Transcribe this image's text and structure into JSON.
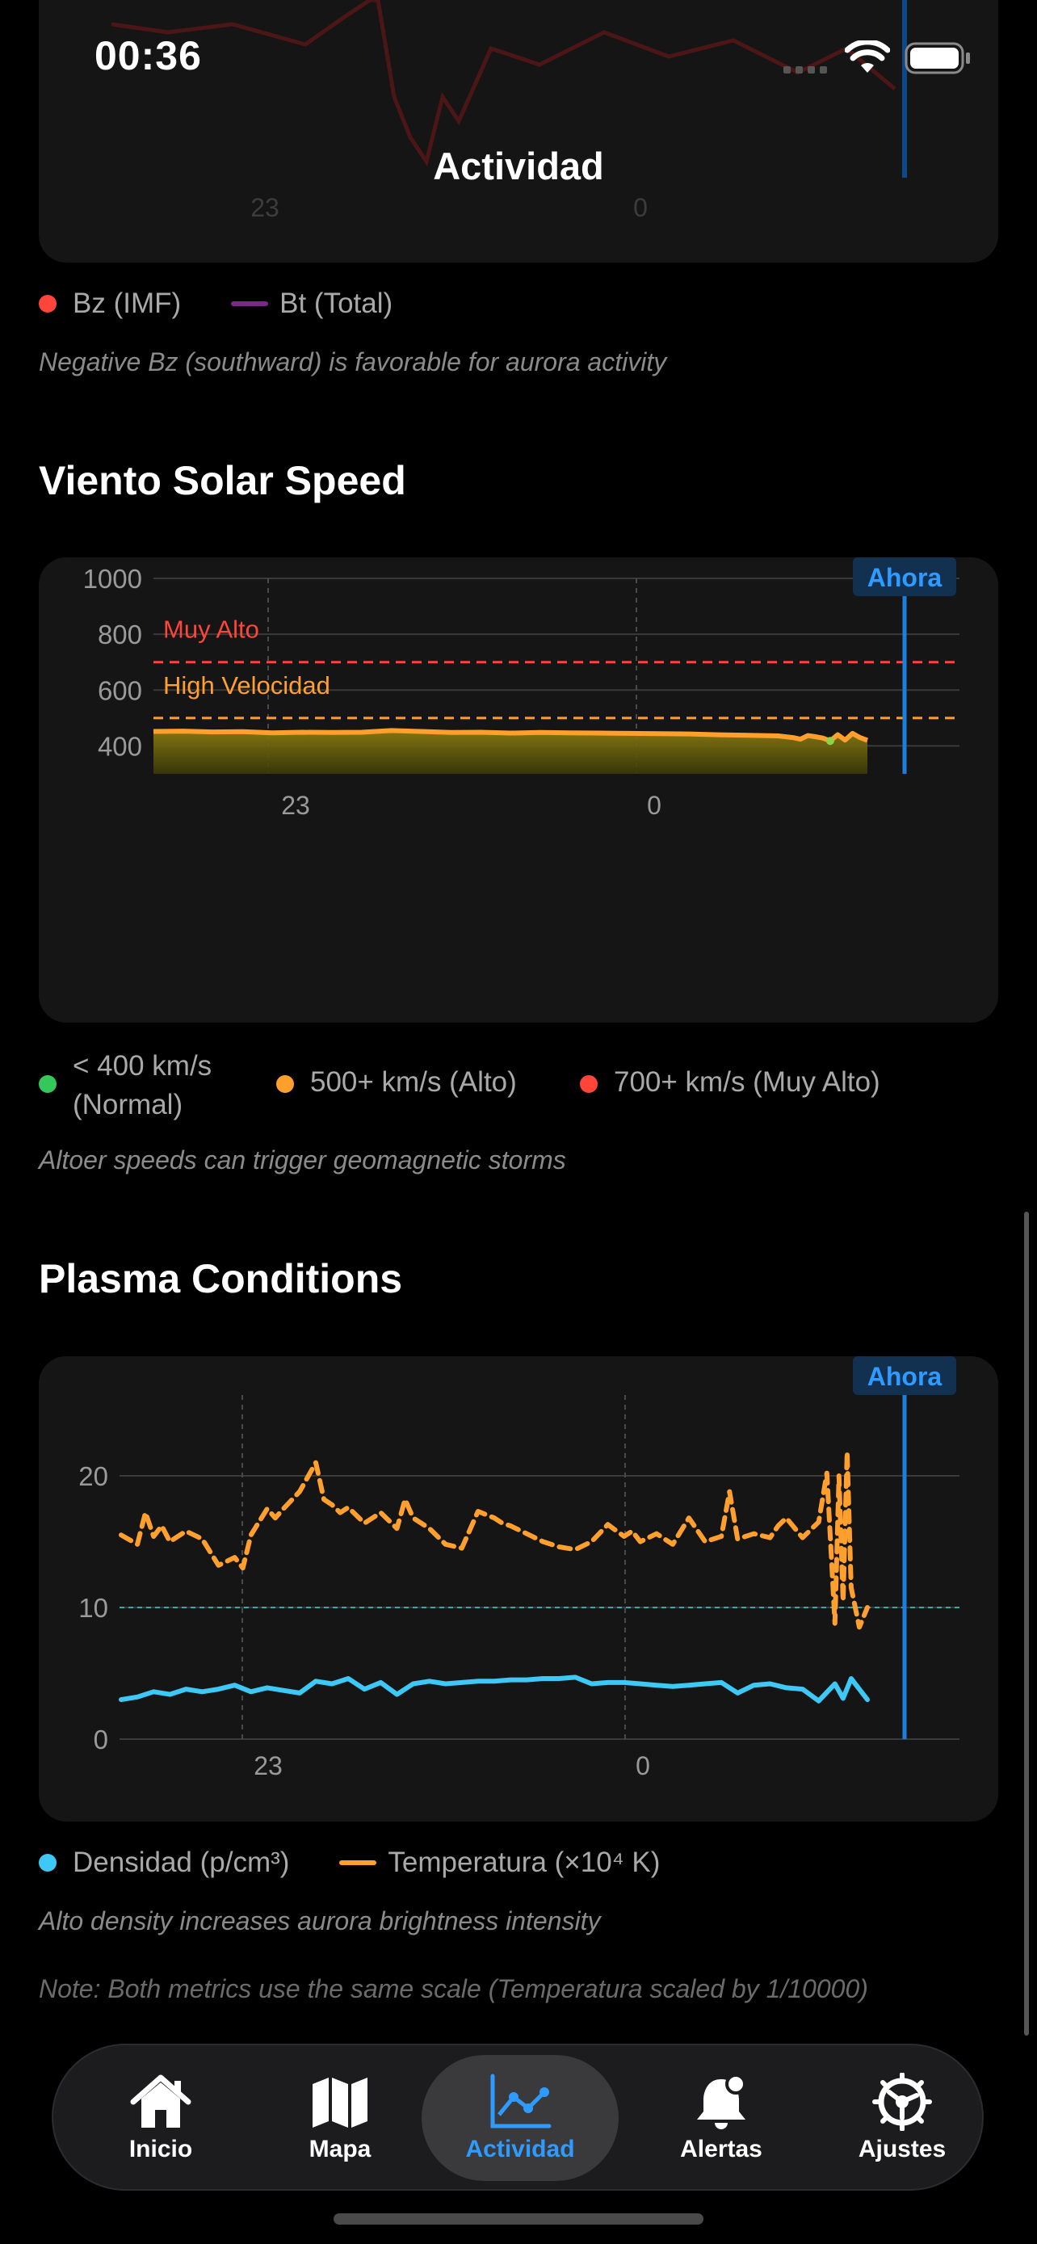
{
  "status": {
    "time": "00:36"
  },
  "nav": {
    "title": "Actividad"
  },
  "top_chart": {
    "x_tick_labels": [
      "23",
      "0"
    ]
  },
  "magnetic_legend": [
    {
      "label": "Bz (IMF)",
      "color": "#ff453a",
      "kind": "dot"
    },
    {
      "label": "Bt (Total)",
      "color": "#7a2a86",
      "kind": "line"
    }
  ],
  "magnetic_caption": "Negative Bz (southward) is favorable for aurora activity",
  "solar_wind": {
    "title": "Viento Solar Speed",
    "now_label": "Ahora",
    "caption": "Altoer speeds can trigger geomagnetic storms",
    "legend": [
      {
        "label_line1": "< 400 km/s",
        "label_line2": "(Normal)",
        "color": "#34c759"
      },
      {
        "label": "500+ km/s (Alto)",
        "color": "#ff9f2e"
      },
      {
        "label": "700+ km/s (Muy Alto)",
        "color": "#ff453a"
      }
    ]
  },
  "plasma": {
    "title": "Plasma Conditions",
    "now_label": "Ahora",
    "caption": "Alto density increases aurora brightness intensity",
    "note": "Note: Both metrics use the same scale (Temperatura scaled by 1/10000)",
    "legend": [
      {
        "label": "Densidad (p/cm³)",
        "color": "#3dc8f5",
        "kind": "dot"
      },
      {
        "label": "Temperatura (×10⁴ K)",
        "color": "#ff9f2e",
        "kind": "line"
      }
    ]
  },
  "chart_data": [
    {
      "type": "line",
      "title": "Viento Solar Speed",
      "xlabel": "",
      "ylabel": "",
      "x_ticks": [
        "23",
        "0"
      ],
      "y_ticks": [
        400,
        600,
        800,
        1000
      ],
      "ylim": [
        300,
        1000
      ],
      "xlim": [
        0,
        100
      ],
      "grid": true,
      "thresholds": [
        {
          "label": "Muy Alto",
          "value": 700,
          "color": "#ff453a"
        },
        {
          "label": "High Velocidad",
          "value": 500,
          "color": "#ff9f2e"
        }
      ],
      "series": [
        {
          "color": "#ff9f2e",
          "x": [
            0,
            4,
            8,
            12,
            16,
            20,
            24,
            28,
            32,
            36,
            40,
            44,
            48,
            52,
            56,
            60,
            64,
            68,
            72,
            76,
            80,
            84,
            86,
            87,
            88,
            89,
            90,
            91,
            92,
            93,
            94,
            95,
            96
          ],
          "values": [
            452,
            453,
            450,
            451,
            447,
            449,
            448,
            449,
            455,
            452,
            448,
            449,
            446,
            448,
            447,
            446,
            445,
            444,
            443,
            440,
            438,
            436,
            430,
            424,
            437,
            433,
            428,
            418,
            440,
            421,
            445,
            430,
            420
          ]
        }
      ]
    },
    {
      "type": "line",
      "title": "Plasma Conditions",
      "xlabel": "",
      "ylabel": "",
      "x_ticks": [
        "23",
        "0"
      ],
      "y_ticks": [
        0,
        10,
        20
      ],
      "ylim": [
        0,
        26
      ],
      "xlim": [
        0,
        100
      ],
      "grid": true,
      "reference_line": 10,
      "series": [
        {
          "name": "Temperatura (×10⁴ K)",
          "color": "#ff9f2e",
          "dashed": true,
          "x": [
            0,
            2,
            3,
            4,
            5,
            6,
            8,
            10,
            12,
            14,
            15,
            16,
            17,
            18,
            19,
            20,
            22,
            24,
            25,
            26,
            27,
            28,
            30,
            32,
            34,
            35,
            36,
            38,
            40,
            42,
            44,
            46,
            47,
            48,
            50,
            52,
            54,
            56,
            58,
            60,
            62,
            63,
            64,
            66,
            68,
            70,
            72,
            74,
            75,
            76,
            78,
            80,
            81,
            82,
            84,
            86,
            87,
            88,
            88.5,
            89,
            89.5,
            90,
            91,
            92
          ],
          "values": [
            15.5,
            14.8,
            17.2,
            15.4,
            16.2,
            15,
            15.8,
            15.2,
            13.2,
            13.8,
            13,
            15.5,
            16.5,
            17.5,
            16.8,
            17.5,
            18.8,
            21,
            18.2,
            17.8,
            17.2,
            17.6,
            16.4,
            17.2,
            16,
            18.2,
            16.8,
            16,
            14.8,
            14.5,
            17.3,
            16.8,
            16.4,
            16.2,
            15.6,
            15,
            14.6,
            14.4,
            15,
            16.3,
            15.4,
            15.8,
            15,
            15.6,
            14.8,
            16.8,
            15,
            15.4,
            18.8,
            15.2,
            15.6,
            15.3,
            16.2,
            16.8,
            15.3,
            16.5,
            20.2,
            8.8,
            20,
            10.5,
            21.8,
            11.5,
            8.5,
            10
          ]
        },
        {
          "name": "Densidad (p/cm³)",
          "color": "#3dc8f5",
          "dashed": false,
          "x": [
            0,
            2,
            4,
            6,
            8,
            10,
            12,
            14,
            16,
            18,
            20,
            22,
            24,
            26,
            28,
            30,
            32,
            34,
            36,
            38,
            40,
            42,
            44,
            46,
            48,
            50,
            52,
            54,
            56,
            58,
            60,
            62,
            64,
            66,
            68,
            70,
            72,
            74,
            76,
            78,
            80,
            82,
            84,
            86,
            88,
            89,
            90,
            91,
            92
          ],
          "values": [
            3,
            3.2,
            3.6,
            3.4,
            3.8,
            3.6,
            3.8,
            4.1,
            3.6,
            3.9,
            3.7,
            3.5,
            4.4,
            4.2,
            4.6,
            3.8,
            4.3,
            3.4,
            4.2,
            4.4,
            4.2,
            4.3,
            4.4,
            4.4,
            4.5,
            4.5,
            4.6,
            4.6,
            4.7,
            4.2,
            4.3,
            4.3,
            4.2,
            4.1,
            4.0,
            4.1,
            4.2,
            4.3,
            3.5,
            4.1,
            4.2,
            3.9,
            3.8,
            2.9,
            4.2,
            3.1,
            4.6,
            3.8,
            3.0
          ]
        }
      ]
    }
  ],
  "tabs": [
    {
      "label": "Inicio",
      "icon": "house-icon",
      "active": false
    },
    {
      "label": "Mapa",
      "icon": "map-icon",
      "active": false
    },
    {
      "label": "Actividad",
      "icon": "chart-icon",
      "active": true
    },
    {
      "label": "Alertas",
      "icon": "bell-icon",
      "active": false
    },
    {
      "label": "Ajustes",
      "icon": "gear-icon",
      "active": false
    }
  ]
}
